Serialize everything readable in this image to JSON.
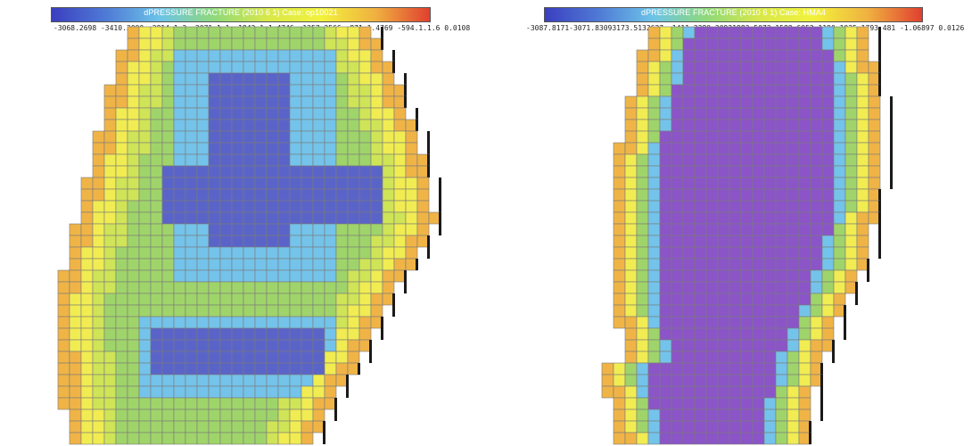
{
  "panels": [
    {
      "title": "dPRESSURE FRACTURE (2010  6  1) Case: op10021",
      "ticks": "-3068.2698  -3410.3000  -2814.1.2  -2071.1.1  -1843.1.1.4746  -1257.2566  -971.1.4769  -594.1.1.6  0.0108"
    },
    {
      "title": "dPRESSURE FRACTURE (2010  6  1) Case: HMA4",
      "ticks": "-3087.8171-3071.83093173.5132627  -1411.2380.20931983.5073.1588.6052.1190.1035.1793.481  -1.06897  0.0126"
    }
  ],
  "colors": {
    "colorbar_stops": [
      "#3b3fbf",
      "#4f7ad6",
      "#6cc3e8",
      "#8fd97a",
      "#d9e84a",
      "#f2f23c",
      "#f0b040",
      "#e04030"
    ],
    "grid_line": "#7a7a7a",
    "cell_violet": "#8b55c8",
    "cell_blue": "#5a64c8",
    "cell_lightblue": "#74c3ea",
    "cell_green": "#9fd46a",
    "cell_yellowgreen": "#cfe457",
    "cell_yellow": "#f1ec52",
    "cell_orange": "#f0b446"
  }
}
